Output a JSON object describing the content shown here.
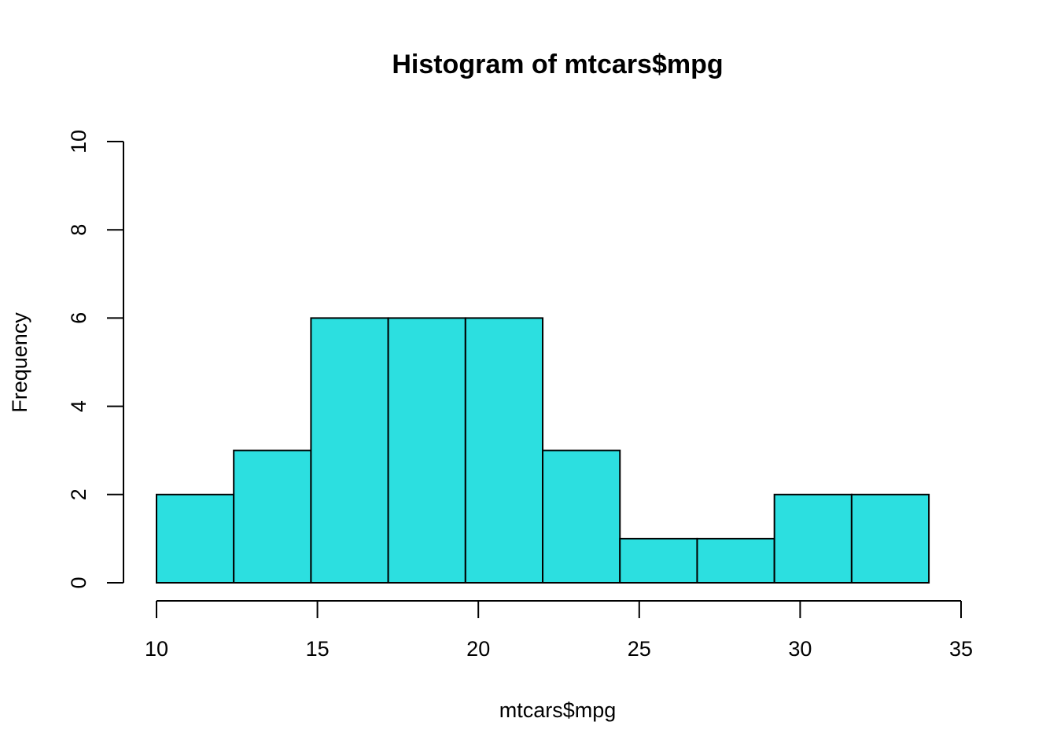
{
  "chart_data": {
    "type": "bar",
    "title": "Histogram of mtcars$mpg",
    "xlabel": "mtcars$mpg",
    "ylabel": "Frequency",
    "bins": [
      {
        "x0": 10.0,
        "x1": 12.4,
        "count": 2
      },
      {
        "x0": 12.4,
        "x1": 14.8,
        "count": 3
      },
      {
        "x0": 14.8,
        "x1": 17.2,
        "count": 6
      },
      {
        "x0": 17.2,
        "x1": 19.6,
        "count": 6
      },
      {
        "x0": 19.6,
        "x1": 22.0,
        "count": 6
      },
      {
        "x0": 22.0,
        "x1": 24.4,
        "count": 3
      },
      {
        "x0": 24.4,
        "x1": 26.8,
        "count": 1
      },
      {
        "x0": 26.8,
        "x1": 29.2,
        "count": 1
      },
      {
        "x0": 29.2,
        "x1": 31.6,
        "count": 2
      },
      {
        "x0": 31.6,
        "x1": 34.0,
        "count": 2
      }
    ],
    "xlim": [
      10,
      35
    ],
    "ylim": [
      0,
      10
    ],
    "x_ticks": [
      10,
      15,
      20,
      25,
      30,
      35
    ],
    "y_ticks": [
      0,
      2,
      4,
      6,
      8,
      10
    ],
    "grid": false,
    "bar_fill": "#2cdfe0",
    "bar_stroke": "#000000"
  }
}
